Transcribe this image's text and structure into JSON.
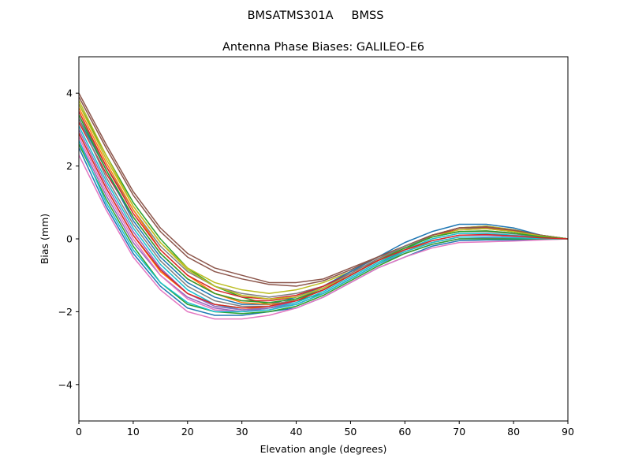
{
  "header": {
    "suptitle": "BMSATMS301A     BMSS"
  },
  "chart_data": {
    "type": "line",
    "title": "Antenna Phase Biases: GALILEO-E6",
    "xlabel": "Elevation angle (degrees)",
    "ylabel": "Bias (mm)",
    "xlim": [
      0,
      90
    ],
    "ylim": [
      -5,
      5
    ],
    "xticks": [
      0,
      10,
      20,
      30,
      40,
      50,
      60,
      70,
      80,
      90
    ],
    "yticks": [
      -4,
      -2,
      0,
      2,
      4
    ],
    "xtick_labels": [
      "0",
      "10",
      "20",
      "30",
      "40",
      "50",
      "60",
      "70",
      "80",
      "90"
    ],
    "ytick_labels": [
      "−4",
      "−2",
      "0",
      "2",
      "4"
    ],
    "grid": false,
    "legend": "none",
    "x": [
      0,
      5,
      10,
      15,
      20,
      25,
      30,
      35,
      40,
      45,
      50,
      55,
      60,
      65,
      70,
      75,
      80,
      85,
      90
    ],
    "series": [
      {
        "color": "#1f77b4",
        "values": [
          2.5,
          0.9,
          -0.4,
          -1.3,
          -1.9,
          -2.1,
          -2.1,
          -2.0,
          -1.9,
          -1.6,
          -1.2,
          -0.8,
          -0.5,
          -0.2,
          -0.05,
          -0.03,
          -0.03,
          -0.02,
          0.0
        ]
      },
      {
        "color": "#ff7f0e",
        "values": [
          2.9,
          1.4,
          0.1,
          -0.9,
          -1.5,
          -1.8,
          -1.9,
          -1.9,
          -1.7,
          -1.4,
          -1.0,
          -0.6,
          -0.3,
          -0.1,
          0.05,
          0.05,
          0.03,
          0.01,
          0.0
        ]
      },
      {
        "color": "#2ca02c",
        "values": [
          3.7,
          2.3,
          1.0,
          0.0,
          -0.8,
          -1.3,
          -1.6,
          -1.8,
          -1.7,
          -1.5,
          -1.1,
          -0.7,
          -0.3,
          0.1,
          0.3,
          0.3,
          0.2,
          0.1,
          0.0
        ]
      },
      {
        "color": "#d62728",
        "values": [
          3.2,
          1.8,
          0.6,
          -0.4,
          -1.1,
          -1.5,
          -1.7,
          -1.7,
          -1.6,
          -1.3,
          -0.9,
          -0.5,
          -0.2,
          0.1,
          0.25,
          0.28,
          0.2,
          0.08,
          0.0
        ]
      },
      {
        "color": "#9467bd",
        "values": [
          2.7,
          1.2,
          -0.1,
          -1.0,
          -1.6,
          -1.9,
          -2.0,
          -1.9,
          -1.8,
          -1.5,
          -1.1,
          -0.7,
          -0.4,
          -0.15,
          0.0,
          0.02,
          0.02,
          0.0,
          0.0
        ]
      },
      {
        "color": "#8c564b",
        "values": [
          4.0,
          2.6,
          1.3,
          0.3,
          -0.4,
          -0.8,
          -1.0,
          -1.2,
          -1.2,
          -1.1,
          -0.8,
          -0.5,
          -0.2,
          0.1,
          0.3,
          0.35,
          0.25,
          0.1,
          0.0
        ]
      },
      {
        "color": "#e377c2",
        "values": [
          2.3,
          0.8,
          -0.5,
          -1.4,
          -2.0,
          -2.2,
          -2.2,
          -2.1,
          -1.9,
          -1.6,
          -1.2,
          -0.8,
          -0.5,
          -0.25,
          -0.1,
          -0.08,
          -0.06,
          -0.03,
          0.0
        ]
      },
      {
        "color": "#7f7f7f",
        "values": [
          3.4,
          2.0,
          0.8,
          -0.2,
          -0.9,
          -1.3,
          -1.5,
          -1.6,
          -1.5,
          -1.3,
          -0.9,
          -0.6,
          -0.2,
          0.1,
          0.3,
          0.3,
          0.2,
          0.08,
          0.0
        ]
      },
      {
        "color": "#bcbd22",
        "values": [
          3.8,
          2.3,
          0.9,
          -0.1,
          -0.8,
          -1.2,
          -1.4,
          -1.5,
          -1.4,
          -1.2,
          -0.9,
          -0.5,
          -0.2,
          0.1,
          0.3,
          0.35,
          0.25,
          0.1,
          0.0
        ]
      },
      {
        "color": "#17becf",
        "values": [
          3.1,
          1.6,
          0.3,
          -0.7,
          -1.4,
          -1.8,
          -1.95,
          -1.9,
          -1.75,
          -1.45,
          -1.05,
          -0.65,
          -0.3,
          0.0,
          0.15,
          0.15,
          0.1,
          0.04,
          0.0
        ]
      },
      {
        "color": "#1f77b4",
        "values": [
          3.3,
          1.9,
          0.5,
          -0.5,
          -1.2,
          -1.6,
          -1.8,
          -1.8,
          -1.6,
          -1.3,
          -0.9,
          -0.5,
          -0.1,
          0.2,
          0.4,
          0.4,
          0.3,
          0.1,
          0.0
        ]
      },
      {
        "color": "#ff7f0e",
        "values": [
          3.6,
          2.1,
          0.8,
          -0.3,
          -1.0,
          -1.5,
          -1.75,
          -1.8,
          -1.7,
          -1.4,
          -1.0,
          -0.6,
          -0.25,
          0.05,
          0.2,
          0.22,
          0.15,
          0.06,
          0.0
        ]
      },
      {
        "color": "#2ca02c",
        "values": [
          2.6,
          1.1,
          -0.2,
          -1.2,
          -1.8,
          -2.0,
          -2.05,
          -2.0,
          -1.85,
          -1.55,
          -1.15,
          -0.75,
          -0.4,
          -0.15,
          0.0,
          0.0,
          0.0,
          0.0,
          0.0
        ]
      },
      {
        "color": "#d62728",
        "values": [
          3.5,
          2.0,
          0.7,
          -0.3,
          -1.0,
          -1.4,
          -1.6,
          -1.65,
          -1.55,
          -1.3,
          -0.95,
          -0.55,
          -0.2,
          0.1,
          0.3,
          0.32,
          0.22,
          0.09,
          0.0
        ]
      },
      {
        "color": "#9467bd",
        "values": [
          3.0,
          1.5,
          0.2,
          -0.8,
          -1.5,
          -1.85,
          -1.95,
          -1.9,
          -1.7,
          -1.4,
          -1.0,
          -0.6,
          -0.3,
          -0.05,
          0.1,
          0.1,
          0.07,
          0.03,
          0.0
        ]
      },
      {
        "color": "#8c564b",
        "values": [
          3.9,
          2.5,
          1.2,
          0.2,
          -0.5,
          -0.9,
          -1.1,
          -1.25,
          -1.3,
          -1.15,
          -0.85,
          -0.5,
          -0.2,
          0.1,
          0.3,
          0.33,
          0.24,
          0.1,
          0.0
        ]
      },
      {
        "color": "#e377c2",
        "values": [
          2.8,
          1.3,
          0.0,
          -1.0,
          -1.65,
          -1.95,
          -2.0,
          -1.95,
          -1.8,
          -1.5,
          -1.1,
          -0.7,
          -0.35,
          -0.1,
          0.05,
          0.05,
          0.04,
          0.02,
          0.0
        ]
      },
      {
        "color": "#7f7f7f",
        "values": [
          3.3,
          1.7,
          0.4,
          -0.6,
          -1.3,
          -1.7,
          -1.85,
          -1.85,
          -1.65,
          -1.35,
          -0.95,
          -0.55,
          -0.2,
          0.05,
          0.2,
          0.2,
          0.14,
          0.05,
          0.0
        ]
      },
      {
        "color": "#bcbd22",
        "values": [
          3.7,
          2.2,
          0.9,
          -0.1,
          -0.85,
          -1.3,
          -1.55,
          -1.65,
          -1.6,
          -1.35,
          -1.0,
          -0.6,
          -0.25,
          0.05,
          0.25,
          0.28,
          0.2,
          0.08,
          0.0
        ]
      },
      {
        "color": "#17becf",
        "values": [
          2.7,
          1.0,
          -0.3,
          -1.2,
          -1.75,
          -2.0,
          -2.0,
          -1.95,
          -1.8,
          -1.5,
          -1.1,
          -0.7,
          -0.35,
          -0.1,
          0.05,
          0.05,
          0.03,
          0.01,
          0.0
        ]
      },
      {
        "color": "#2ca02c",
        "values": [
          3.4,
          1.9,
          0.6,
          -0.4,
          -1.1,
          -1.5,
          -1.7,
          -1.75,
          -1.65,
          -1.4,
          -1.0,
          -0.6,
          -0.25,
          0.05,
          0.2,
          0.22,
          0.16,
          0.06,
          0.0
        ]
      },
      {
        "color": "#d62728",
        "values": [
          2.9,
          1.4,
          0.1,
          -0.85,
          -1.5,
          -1.8,
          -1.9,
          -1.85,
          -1.7,
          -1.4,
          -1.0,
          -0.6,
          -0.3,
          -0.05,
          0.1,
          0.12,
          0.08,
          0.03,
          0.0
        ]
      }
    ]
  }
}
